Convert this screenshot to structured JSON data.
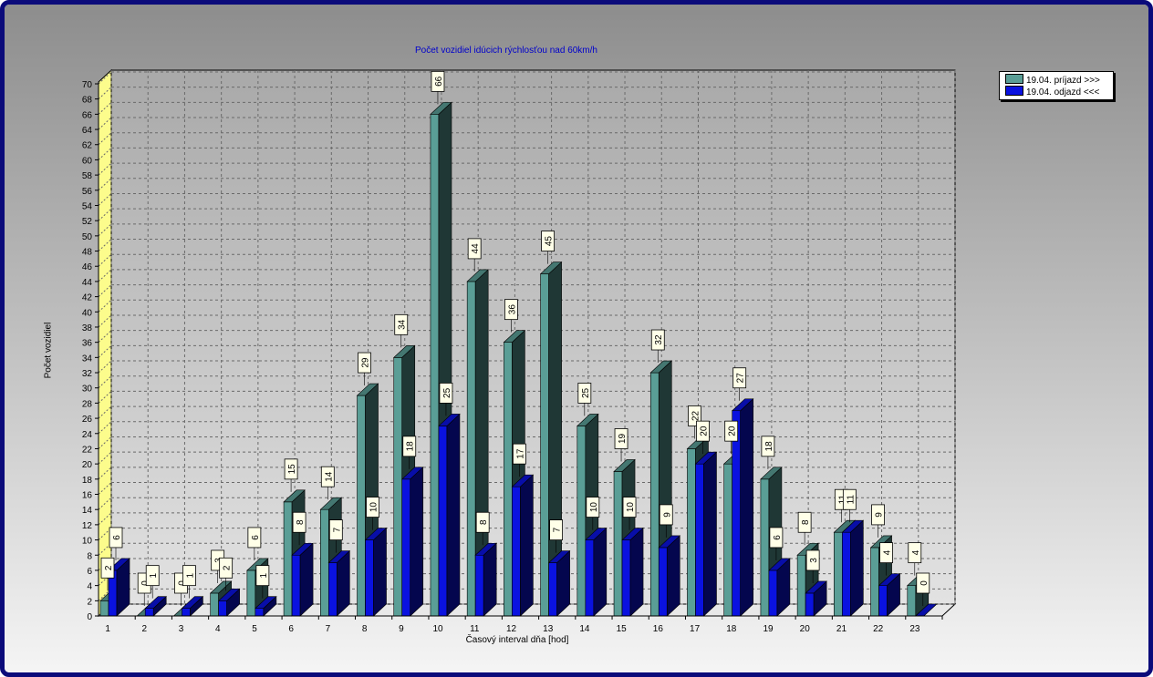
{
  "chart_data": {
    "type": "bar",
    "title": "Počet vozidiel idúcich rýchlosťou nad 60km/h",
    "xlabel": "Časový interval dňa [hod]",
    "ylabel": "Počet vozidiel",
    "ylim": [
      0,
      70
    ],
    "ytick_step": 2,
    "grid": true,
    "legend_position": "top-right",
    "categories": [
      "1",
      "2",
      "3",
      "4",
      "5",
      "6",
      "7",
      "8",
      "9",
      "10",
      "11",
      "12",
      "13",
      "14",
      "15",
      "16",
      "17",
      "18",
      "19",
      "20",
      "21",
      "22",
      "23"
    ],
    "series": [
      {
        "name": "19.04.  príjazd >>>",
        "color": "#5a9e96",
        "values": [
          2,
          0,
          0,
          3,
          6,
          15,
          14,
          29,
          34,
          66,
          44,
          36,
          45,
          25,
          19,
          32,
          22,
          20,
          18,
          8,
          11,
          9,
          4
        ]
      },
      {
        "name": "19.04.  odjazd <<<",
        "color": "#0a12e0",
        "values": [
          6,
          1,
          1,
          2,
          1,
          8,
          7,
          10,
          18,
          25,
          8,
          17,
          7,
          10,
          10,
          9,
          20,
          27,
          6,
          3,
          11,
          4,
          0
        ]
      }
    ]
  }
}
